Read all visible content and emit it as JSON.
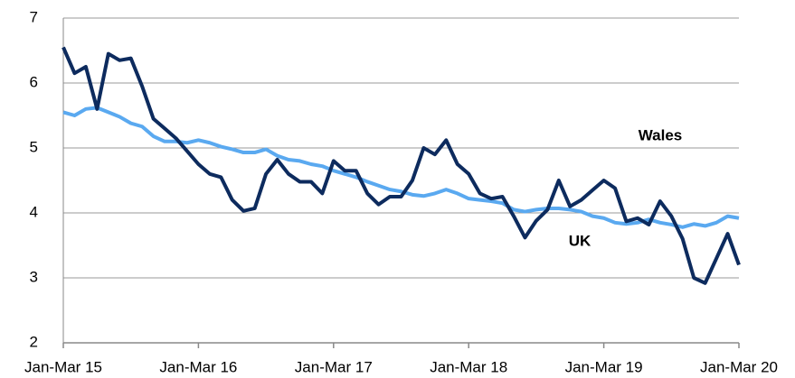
{
  "chart_data": {
    "type": "line",
    "categories": [
      "Jan-Mar 15",
      null,
      null,
      null,
      null,
      null,
      null,
      null,
      null,
      null,
      null,
      null,
      "Jan-Mar 16",
      null,
      null,
      null,
      null,
      null,
      null,
      null,
      null,
      null,
      null,
      null,
      "Jan-Mar 17",
      null,
      null,
      null,
      null,
      null,
      null,
      null,
      null,
      null,
      null,
      null,
      "Jan-Mar 18",
      null,
      null,
      null,
      null,
      null,
      null,
      null,
      null,
      null,
      null,
      null,
      "Jan-Mar 19",
      null,
      null,
      null,
      null,
      null,
      null,
      null,
      null,
      null,
      null,
      null,
      "Jan-Mar 20"
    ],
    "series": [
      {
        "name": "Wales",
        "color": "#0d2b5e",
        "values": [
          6.55,
          6.15,
          6.25,
          5.6,
          6.45,
          6.35,
          6.38,
          5.95,
          5.45,
          5.3,
          5.15,
          4.95,
          4.75,
          4.6,
          4.55,
          4.2,
          4.03,
          4.07,
          4.6,
          4.82,
          4.6,
          4.48,
          4.48,
          4.3,
          4.8,
          4.65,
          4.65,
          4.3,
          4.13,
          4.25,
          4.25,
          4.5,
          5.0,
          4.9,
          5.12,
          4.75,
          4.6,
          4.3,
          4.22,
          4.25,
          3.95,
          3.62,
          3.88,
          4.05,
          4.5,
          4.1,
          4.2,
          4.35,
          4.5,
          4.38,
          3.87,
          3.92,
          3.82,
          4.18,
          3.95,
          3.6,
          3.0,
          2.92,
          3.3,
          3.68,
          3.2
        ]
      },
      {
        "name": "UK",
        "color": "#5aa9f0",
        "values": [
          5.55,
          5.5,
          5.6,
          5.62,
          5.55,
          5.48,
          5.38,
          5.33,
          5.18,
          5.1,
          5.1,
          5.08,
          5.12,
          5.08,
          5.02,
          4.98,
          4.93,
          4.93,
          4.98,
          4.88,
          4.82,
          4.8,
          4.75,
          4.72,
          4.65,
          4.6,
          4.55,
          4.48,
          4.42,
          4.36,
          4.33,
          4.28,
          4.26,
          4.3,
          4.36,
          4.3,
          4.22,
          4.2,
          4.18,
          4.15,
          4.05,
          4.02,
          4.05,
          4.07,
          4.07,
          4.05,
          4.02,
          3.95,
          3.92,
          3.85,
          3.83,
          3.85,
          3.9,
          3.85,
          3.82,
          3.78,
          3.83,
          3.8,
          3.85,
          3.95,
          3.92
        ]
      }
    ],
    "ylim": [
      2,
      7
    ],
    "yticks": [
      2,
      3,
      4,
      5,
      6,
      7
    ],
    "grid": true
  }
}
